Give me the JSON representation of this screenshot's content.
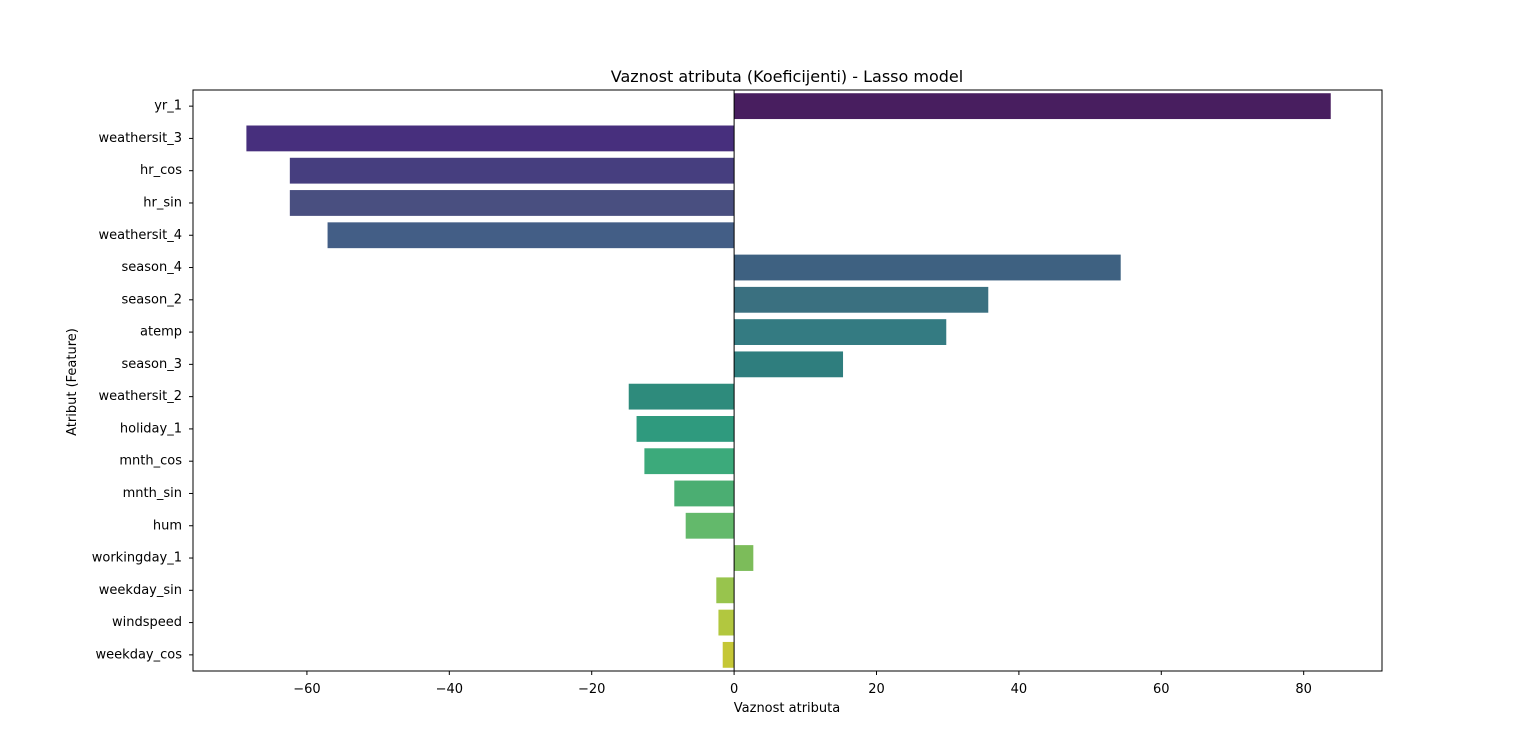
{
  "chart_data": {
    "type": "bar",
    "orientation": "horizontal",
    "title": "Vaznost atributa (Koeficijenti) - Lasso model",
    "xlabel": "Vaznost atributa",
    "ylabel": "Atribut (Feature)",
    "xlim": [
      -76,
      91
    ],
    "xticks": [
      -60,
      -40,
      -20,
      0,
      20,
      40,
      60,
      80
    ],
    "xtick_labels": [
      "−60",
      "−40",
      "−20",
      "0",
      "20",
      "40",
      "60",
      "80"
    ],
    "grid": false,
    "zero_line": true,
    "colormap": "viridis",
    "categories": [
      "yr_1",
      "weathersit_3",
      "hr_cos",
      "hr_sin",
      "weathersit_4",
      "season_4",
      "season_2",
      "atemp",
      "season_3",
      "weathersit_2",
      "holiday_1",
      "mnth_cos",
      "mnth_sin",
      "hum",
      "workingday_1",
      "weekday_sin",
      "windspeed",
      "weekday_cos"
    ],
    "values": [
      83.8,
      -68.5,
      -62.4,
      -62.4,
      -57.1,
      54.3,
      35.7,
      29.8,
      15.3,
      -14.8,
      -13.7,
      -12.6,
      -8.4,
      -6.8,
      2.7,
      -2.5,
      -2.2,
      -1.6
    ],
    "colors": [
      "#481e5f",
      "#472f7d",
      "#463e7f",
      "#494f80",
      "#435e86",
      "#3e6181",
      "#3a7080",
      "#347b82",
      "#2f7e7e",
      "#2e8b7c",
      "#2f9a7e",
      "#3caa7b",
      "#4bae72",
      "#63b96b",
      "#7cbc5a",
      "#98c44d",
      "#b2c73f",
      "#c5c736"
    ]
  }
}
